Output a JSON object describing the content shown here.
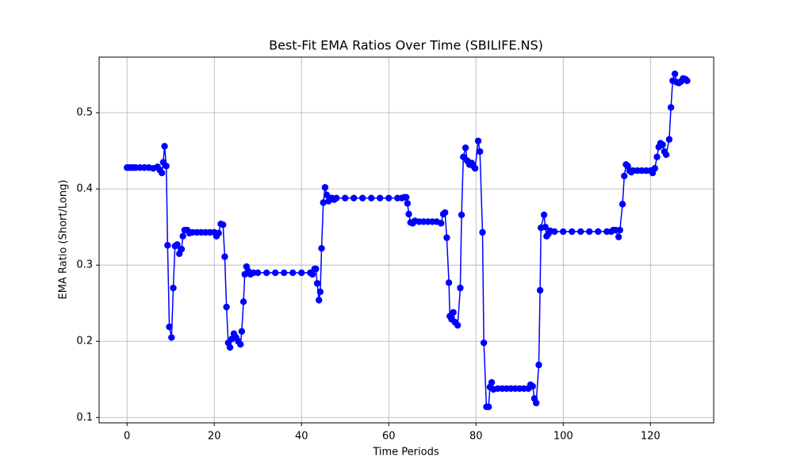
{
  "chart_data": {
    "type": "line",
    "title": "Best-Fit EMA Ratios Over Time (SBILIFE.NS)",
    "x_label": "Time Periods",
    "y_label": "EMA Ratio (Short/Long)",
    "x": [
      0,
      0.5,
      1,
      1.5,
      2,
      3,
      4,
      5,
      6,
      7,
      7.5,
      8,
      8.3,
      8.6,
      9,
      9.3,
      9.7,
      10.2,
      10.6,
      11,
      11.5,
      12,
      12.5,
      12.8,
      13.2,
      13.8,
      14.3,
      15,
      16,
      17,
      18,
      19,
      20,
      20.5,
      21,
      21.5,
      22,
      22.4,
      22.8,
      23.2,
      23.6,
      24,
      24.5,
      25,
      25.5,
      26,
      26.3,
      26.7,
      27,
      27.4,
      27.8,
      28.3,
      29,
      30,
      32,
      34,
      36,
      38,
      40,
      42,
      42.5,
      43,
      43.3,
      43.6,
      44,
      44.3,
      44.6,
      45,
      45.4,
      45.8,
      46.2,
      46.6,
      47,
      47.5,
      48,
      50,
      52,
      54,
      56,
      58,
      60,
      62,
      63,
      63.5,
      64,
      64.3,
      64.6,
      65,
      65.5,
      66,
      67,
      68,
      69,
      70,
      71,
      72,
      72.5,
      72.9,
      73.3,
      73.8,
      74,
      74.4,
      74.8,
      75.2,
      75.8,
      76.4,
      76.7,
      77.1,
      77.6,
      78,
      78.5,
      79,
      79.4,
      79.8,
      80.5,
      80.9,
      81.5,
      81.8,
      82.4,
      82.9,
      83.2,
      83.6,
      84,
      85,
      86,
      87,
      88,
      89,
      90,
      91,
      92,
      92.5,
      93,
      93.4,
      93.8,
      94.4,
      94.7,
      94.9,
      95.6,
      95.9,
      96.2,
      96.6,
      97,
      98,
      100,
      102,
      104,
      106,
      108,
      110,
      111,
      111.5,
      112,
      112.7,
      113,
      113.6,
      114,
      114.4,
      114.8,
      115.2,
      115.6,
      116,
      117,
      118,
      119,
      120,
      120.5,
      121,
      121.5,
      121.9,
      122.3,
      122.8,
      123.2,
      123.6,
      124.3,
      124.7,
      125.1,
      125.6,
      126,
      126.5,
      127,
      127.5,
      128,
      128.4
    ],
    "series": [
      {
        "name": "EMA Ratio",
        "color": "#0000ff",
        "values": [
          0.428,
          0.428,
          0.428,
          0.428,
          0.428,
          0.428,
          0.428,
          0.428,
          0.427,
          0.429,
          0.425,
          0.421,
          0.435,
          0.456,
          0.43,
          0.326,
          0.219,
          0.205,
          0.27,
          0.325,
          0.327,
          0.315,
          0.321,
          0.338,
          0.346,
          0.346,
          0.342,
          0.343,
          0.343,
          0.343,
          0.343,
          0.343,
          0.343,
          0.338,
          0.342,
          0.354,
          0.353,
          0.311,
          0.245,
          0.198,
          0.192,
          0.203,
          0.21,
          0.205,
          0.2,
          0.196,
          0.213,
          0.252,
          0.288,
          0.298,
          0.292,
          0.288,
          0.29,
          0.29,
          0.29,
          0.29,
          0.29,
          0.29,
          0.29,
          0.29,
          0.288,
          0.295,
          0.295,
          0.276,
          0.254,
          0.265,
          0.322,
          0.382,
          0.402,
          0.392,
          0.384,
          0.388,
          0.388,
          0.386,
          0.388,
          0.388,
          0.388,
          0.388,
          0.388,
          0.388,
          0.388,
          0.388,
          0.388,
          0.389,
          0.389,
          0.381,
          0.367,
          0.356,
          0.355,
          0.358,
          0.357,
          0.357,
          0.357,
          0.357,
          0.357,
          0.355,
          0.367,
          0.369,
          0.336,
          0.277,
          0.233,
          0.229,
          0.238,
          0.225,
          0.221,
          0.27,
          0.366,
          0.442,
          0.454,
          0.437,
          0.432,
          0.434,
          0.43,
          0.427,
          0.463,
          0.449,
          0.343,
          0.198,
          0.114,
          0.114,
          0.14,
          0.146,
          0.137,
          0.138,
          0.138,
          0.138,
          0.138,
          0.138,
          0.138,
          0.138,
          0.138,
          0.143,
          0.141,
          0.125,
          0.119,
          0.169,
          0.267,
          0.349,
          0.366,
          0.35,
          0.338,
          0.341,
          0.345,
          0.344,
          0.344,
          0.344,
          0.344,
          0.344,
          0.344,
          0.344,
          0.344,
          0.346,
          0.346,
          0.337,
          0.346,
          0.38,
          0.417,
          0.432,
          0.43,
          0.424,
          0.422,
          0.424,
          0.424,
          0.424,
          0.424,
          0.424,
          0.421,
          0.427,
          0.442,
          0.455,
          0.46,
          0.458,
          0.449,
          0.445,
          0.465,
          0.507,
          0.542,
          0.551,
          0.54,
          0.539,
          0.541,
          0.545,
          0.544,
          0.542
        ]
      }
    ],
    "xlim": [
      -6.4,
      134.5
    ],
    "ylim": [
      0.093,
      0.573
    ],
    "xticks": [
      0,
      20,
      40,
      60,
      80,
      100,
      120
    ],
    "yticks": [
      0.1,
      0.2,
      0.3,
      0.4,
      0.5
    ],
    "grid": true,
    "marker": "circle"
  }
}
